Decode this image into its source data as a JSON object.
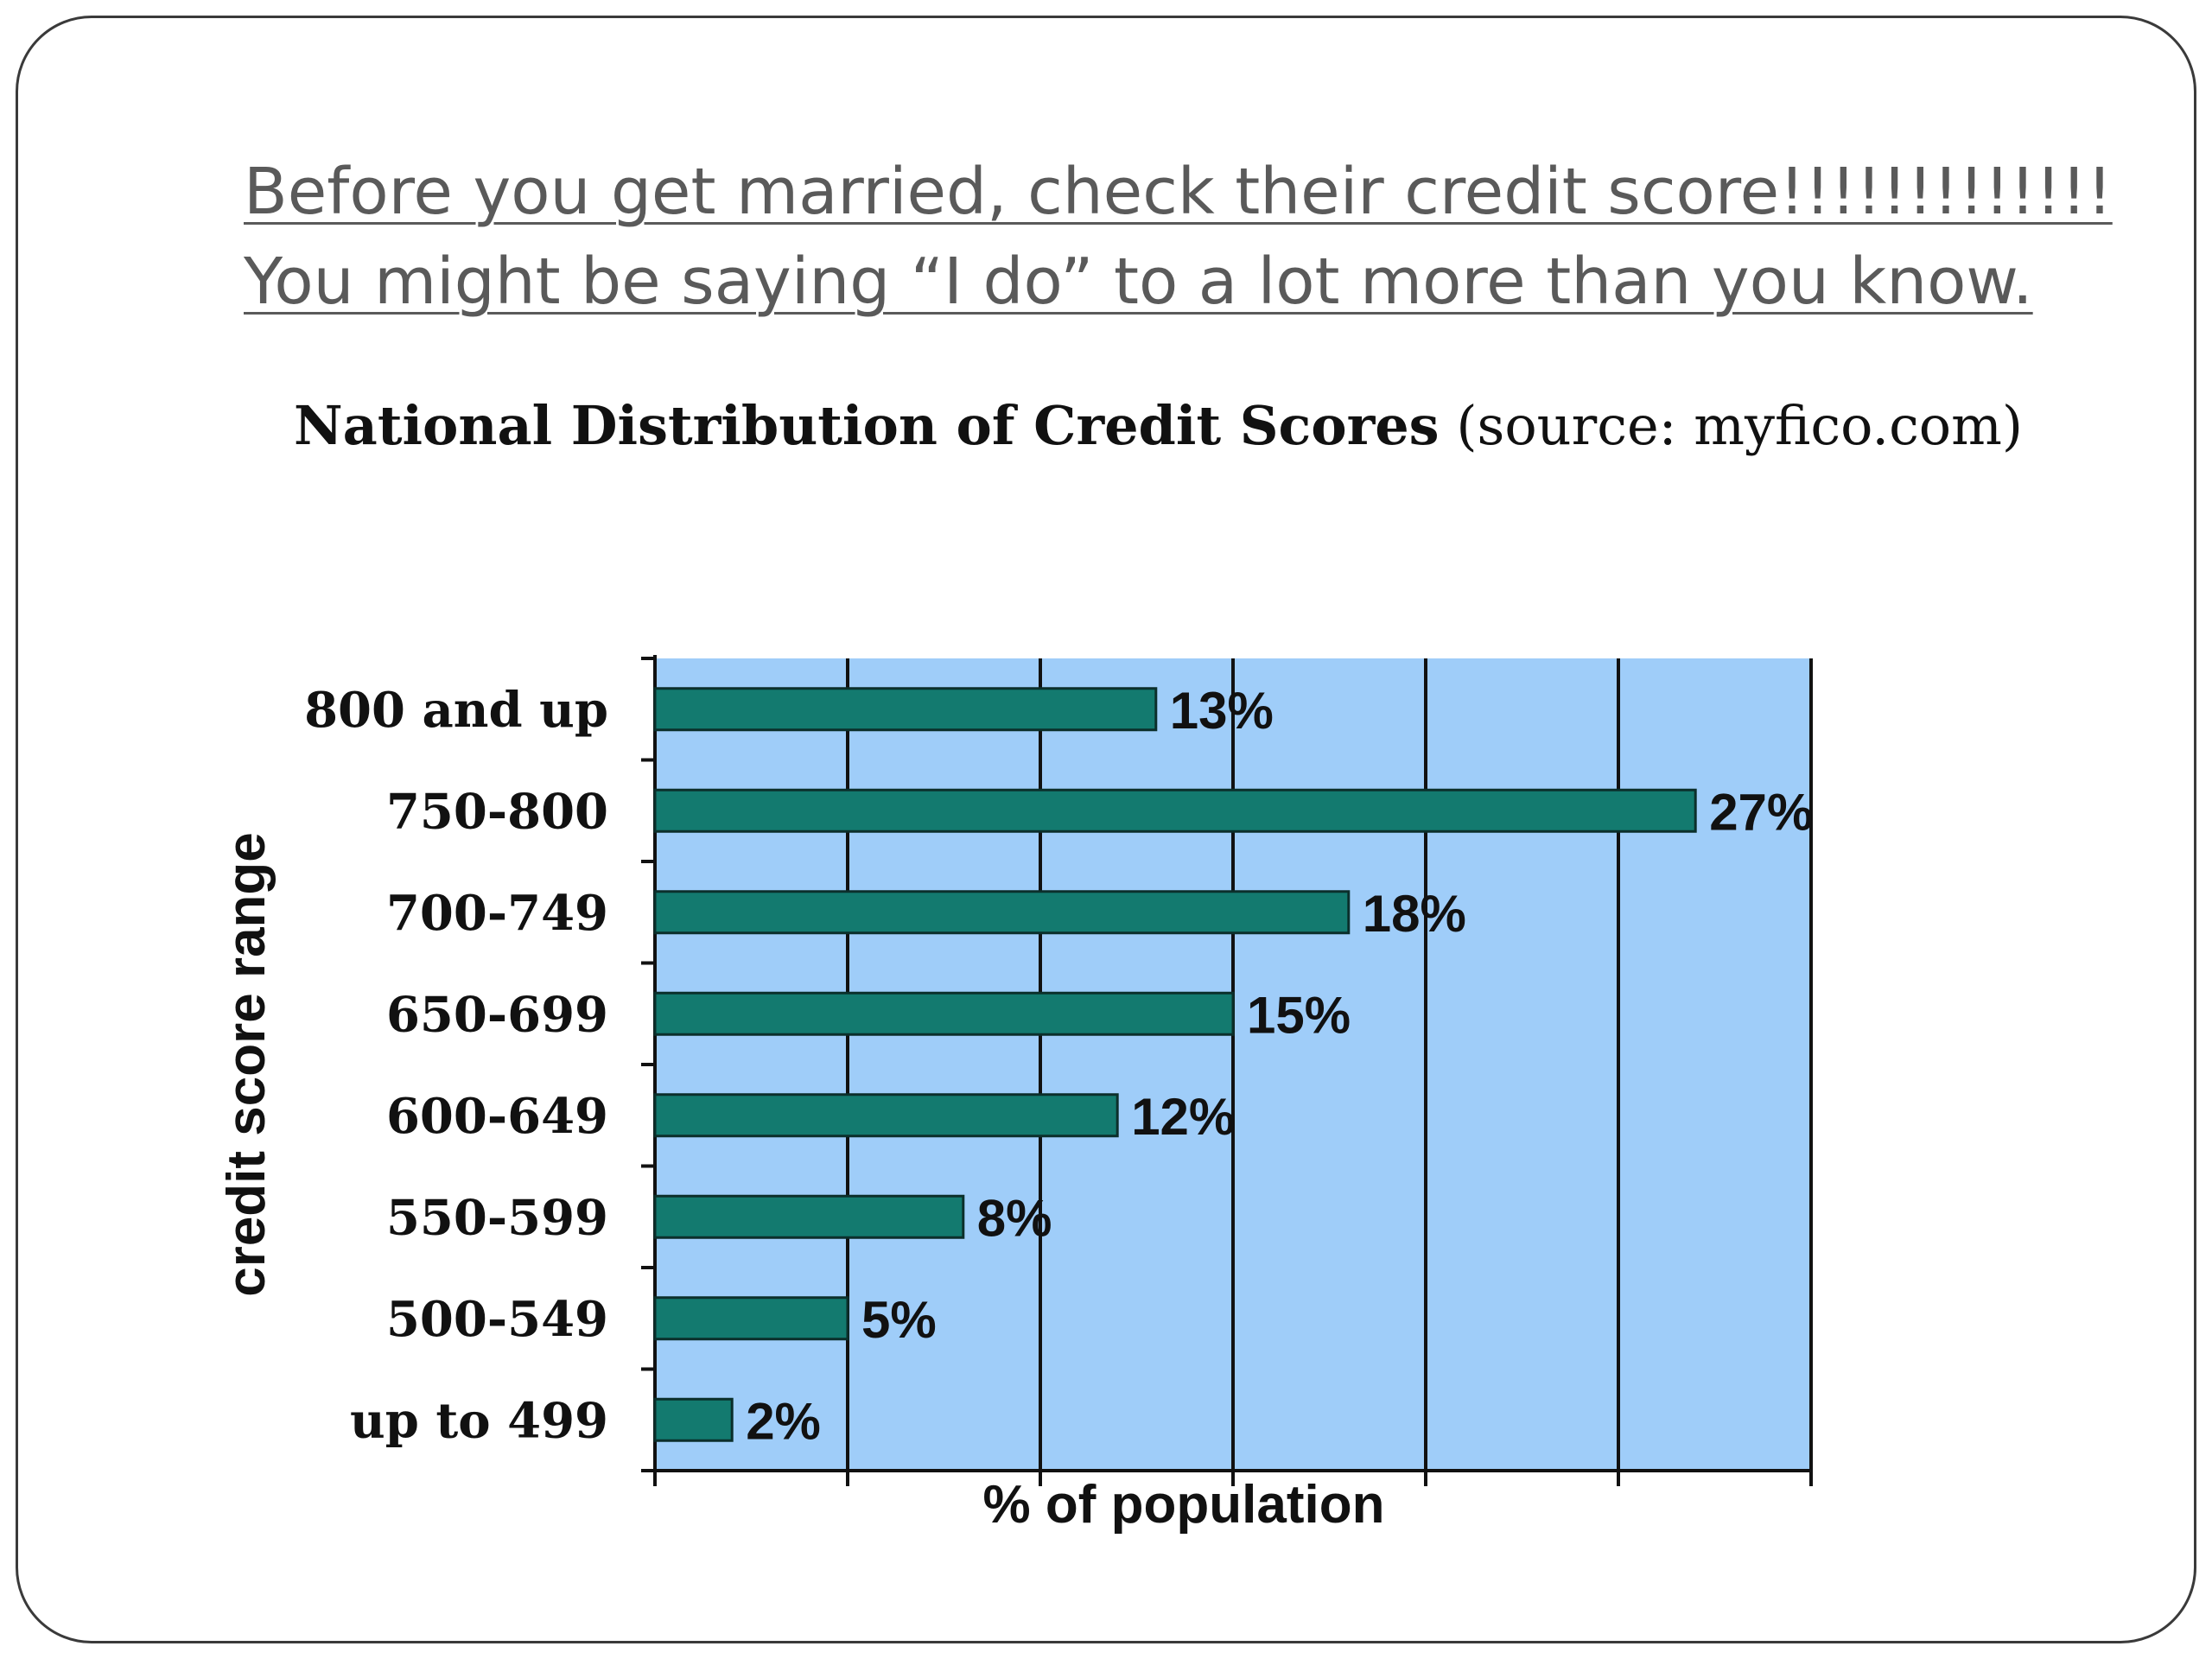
{
  "headline": {
    "line1": "Before you get married, check their credit score!!!!!!!!!!!!!",
    "line2": "You might be saying “I do” to a lot more than you know."
  },
  "chart_data": {
    "type": "bar",
    "orientation": "horizontal",
    "title": "National Distribution of Credit Scores",
    "subtitle": "(source: myfico.com)",
    "xlabel": "% of population",
    "ylabel": "credit score range",
    "categories": [
      "800 and up",
      "750-800",
      "700-749",
      "650-699",
      "600-649",
      "550-599",
      "500-549",
      "up to 499"
    ],
    "values": [
      13,
      27,
      18,
      15,
      12,
      8,
      5,
      2
    ],
    "data_labels": [
      "13%",
      "27%",
      "18%",
      "15%",
      "12%",
      "8%",
      "5%",
      "2%"
    ],
    "xlim": [
      0,
      30
    ],
    "grid": true,
    "colors": {
      "bar": "#137a6f",
      "plot_background": "#9fcdf9",
      "grid": "#111111"
    }
  }
}
